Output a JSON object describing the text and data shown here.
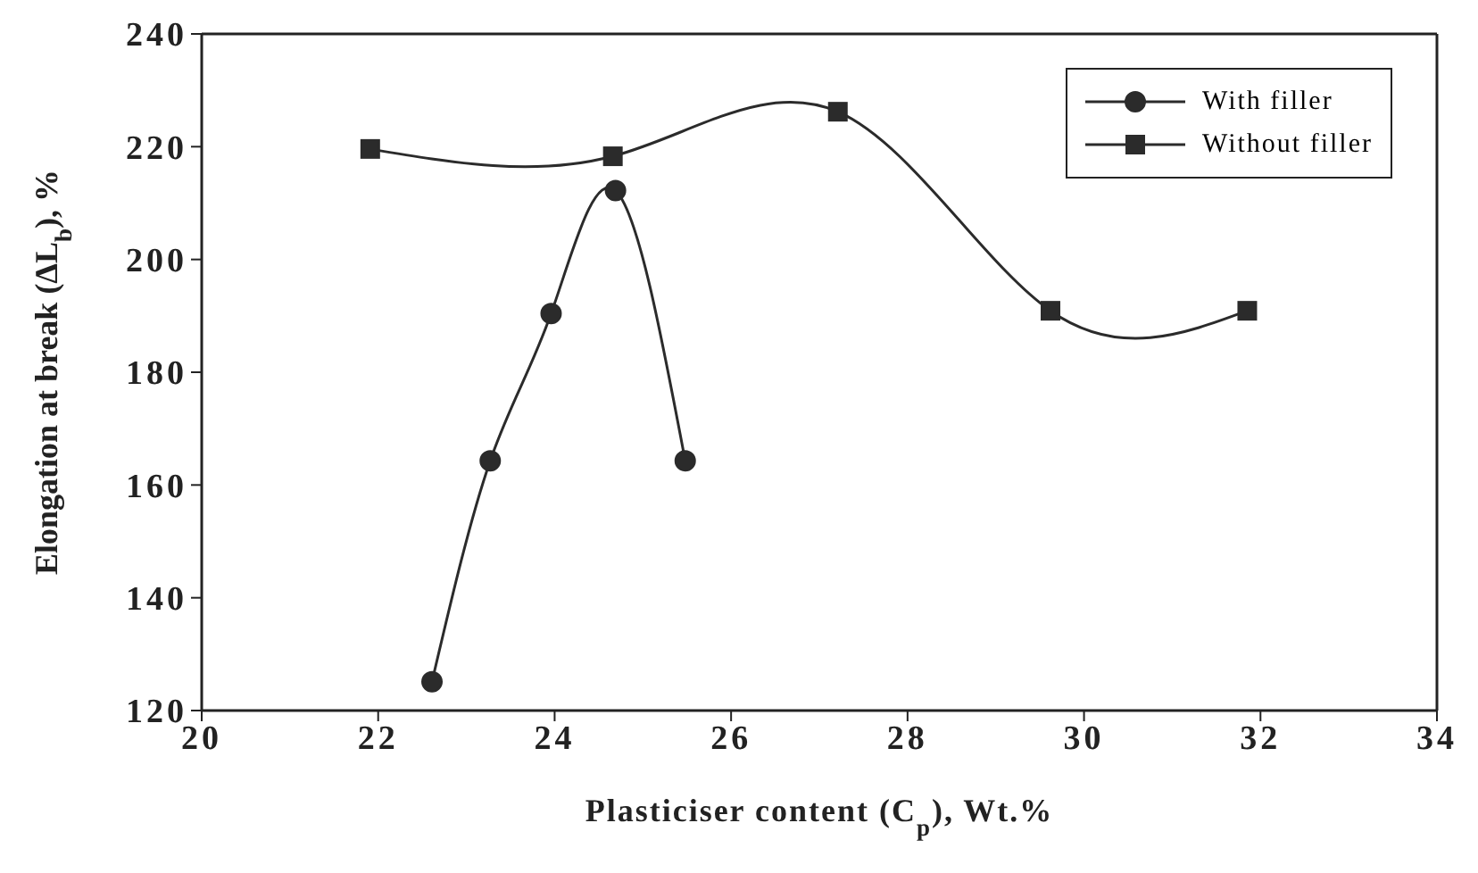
{
  "chart_data": {
    "type": "line",
    "xlabel": "Plasticiser content (C$_{p}$), Wt.%",
    "ylabel": "Elongation at break (ΔL$_{b}$), %",
    "xlim": [
      20,
      34
    ],
    "xticks": [
      20,
      22,
      24,
      26,
      28,
      30,
      32,
      34
    ],
    "ylim": [
      120,
      240
    ],
    "yticks": [
      120,
      140,
      160,
      180,
      200,
      220,
      240
    ],
    "legend": "top right",
    "line_style": "solid",
    "series": [
      {
        "name": "With filler",
        "color": "#2b2b2b",
        "marker": "circle",
        "x": [
          22.61,
          23.27,
          23.96,
          24.69,
          25.48
        ],
        "values": [
          125.1,
          164.3,
          190.4,
          212.2,
          164.3
        ]
      },
      {
        "name": "Without filler",
        "color": "#2b2b2b",
        "marker": "square",
        "x": [
          21.91,
          24.66,
          27.21,
          29.62,
          31.85
        ],
        "values": [
          219.6,
          218.3,
          226.2,
          190.9,
          190.9
        ]
      }
    ]
  }
}
